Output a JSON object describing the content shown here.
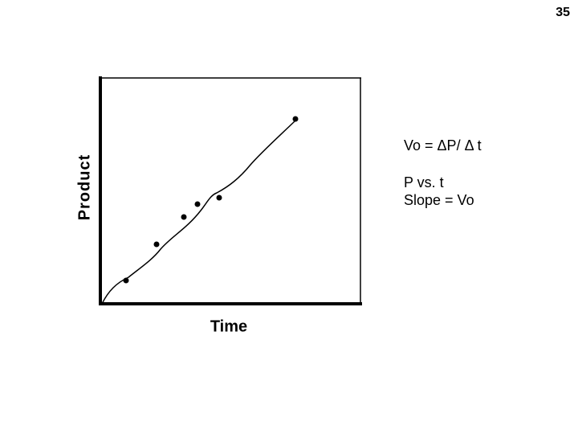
{
  "slide": {
    "page_number": "35",
    "figure": {
      "y_axis_label": "Product",
      "x_axis_label": "Time"
    },
    "notes": [
      "Vo = ΔP/ Δ t",
      "P vs. t",
      "Slope = Vo"
    ]
  }
}
